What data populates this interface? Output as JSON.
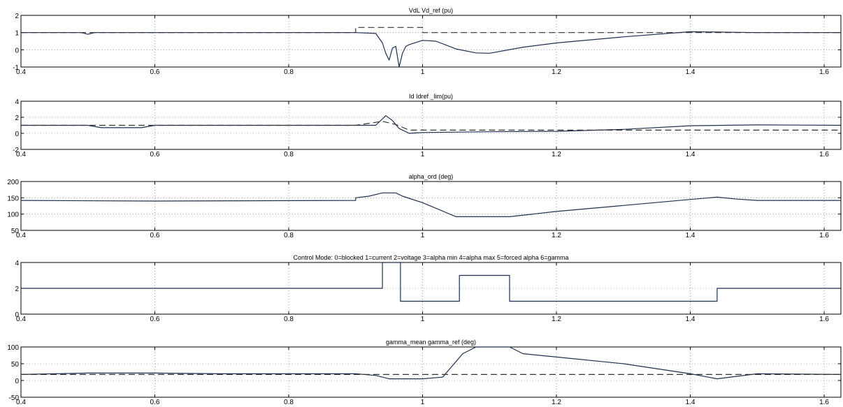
{
  "chart_data": [
    {
      "type": "line",
      "title": "VdL  Vd_ref (pu)",
      "xlim": [
        0.4,
        1.625
      ],
      "ylim": [
        -1,
        2
      ],
      "x_ticks": [
        "0.4",
        "0.6",
        "0.8",
        "1",
        "1.2",
        "1.4",
        "1.6"
      ],
      "y_ticks": [
        "-1",
        "0",
        "1",
        "2"
      ],
      "grid": true,
      "series": [
        {
          "style": "solid",
          "x": [
            0.4,
            0.49,
            0.5,
            0.51,
            0.6,
            0.62,
            0.9,
            0.93,
            0.94,
            0.945,
            0.95,
            0.955,
            0.96,
            0.965,
            0.97,
            0.975,
            0.98,
            1.0,
            1.02,
            1.05,
            1.08,
            1.1,
            1.15,
            1.2,
            1.3,
            1.4,
            1.5,
            1.625
          ],
          "y": [
            1.0,
            1.0,
            0.9,
            1.0,
            1.0,
            1.0,
            1.0,
            0.95,
            0.4,
            -0.2,
            -0.6,
            0.1,
            0.2,
            -1.0,
            -0.2,
            0.2,
            0.3,
            0.55,
            0.5,
            0.05,
            -0.18,
            -0.2,
            0.15,
            0.4,
            0.75,
            1.05,
            1.0,
            1.0
          ]
        },
        {
          "style": "dashed",
          "x": [
            0.4,
            0.9,
            0.9,
            1.0,
            1.0,
            1.625
          ],
          "y": [
            1.0,
            1.0,
            1.3,
            1.3,
            1.0,
            1.0
          ]
        }
      ]
    },
    {
      "type": "line",
      "title": "Id Idref _lim(pu)",
      "xlim": [
        0.4,
        1.625
      ],
      "ylim": [
        -2,
        4
      ],
      "x_ticks": [
        "0.4",
        "0.6",
        "0.8",
        "1",
        "1.2",
        "1.4",
        "1.6"
      ],
      "y_ticks": [
        "-2",
        "0",
        "2",
        "4"
      ],
      "grid": true,
      "series": [
        {
          "style": "solid",
          "x": [
            0.4,
            0.5,
            0.52,
            0.58,
            0.6,
            0.9,
            0.93,
            0.945,
            0.955,
            0.965,
            0.98,
            0.99,
            1.0,
            1.1,
            1.2,
            1.3,
            1.4,
            1.5,
            1.625
          ],
          "y": [
            1.0,
            1.0,
            0.7,
            0.7,
            1.0,
            1.0,
            1.0,
            2.2,
            1.6,
            0.6,
            0.0,
            0.05,
            0.1,
            0.2,
            0.25,
            0.5,
            0.95,
            1.05,
            1.0
          ]
        },
        {
          "style": "dashed",
          "x": [
            0.4,
            0.9,
            0.94,
            0.96,
            0.98,
            1.0,
            1.625
          ],
          "y": [
            1.0,
            1.0,
            1.5,
            1.1,
            0.4,
            0.4,
            0.4
          ]
        }
      ]
    },
    {
      "type": "line",
      "title": "alpha_ord (deg)",
      "xlim": [
        0.4,
        1.625
      ],
      "ylim": [
        50,
        200
      ],
      "x_ticks": [
        "0.4",
        "0.6",
        "0.8",
        "1",
        "1.2",
        "1.4",
        "1.6"
      ],
      "y_ticks": [
        "50",
        "100",
        "150",
        "200"
      ],
      "grid": true,
      "series": [
        {
          "style": "solid",
          "x": [
            0.4,
            0.6,
            0.9,
            0.9,
            0.92,
            0.94,
            0.96,
            0.97,
            1.0,
            1.05,
            1.13,
            1.2,
            1.4,
            1.44,
            1.47,
            1.5,
            1.625
          ],
          "y": [
            142,
            140,
            142,
            150,
            155,
            165,
            165,
            155,
            135,
            92,
            92,
            108,
            145,
            152,
            146,
            142,
            142
          ]
        }
      ]
    },
    {
      "type": "line",
      "title": "Control Mode:  0=blocked  1=current  2=voltage  3=alpha min  4=alpha max  5=forced alpha  6=gamma",
      "xlim": [
        0.4,
        1.625
      ],
      "ylim": [
        0,
        4
      ],
      "x_ticks": [
        "0.4",
        "0.6",
        "0.8",
        "1",
        "1.2",
        "1.4",
        "1.6"
      ],
      "y_ticks": [
        "0",
        "2",
        "4"
      ],
      "grid": true,
      "series": [
        {
          "style": "solid",
          "x": [
            0.4,
            0.94,
            0.94,
            0.955,
            0.955,
            0.967,
            0.967,
            1.055,
            1.055,
            1.13,
            1.13,
            1.44,
            1.44,
            1.625
          ],
          "y": [
            2,
            2,
            4,
            4,
            4,
            4,
            1,
            1,
            3,
            3,
            1,
            1,
            2,
            2
          ]
        }
      ]
    },
    {
      "type": "line",
      "title": "gamma_mean  gamma_ref (deg)",
      "xlim": [
        0.4,
        1.625
      ],
      "ylim": [
        -50,
        100
      ],
      "x_ticks": [
        "0.4",
        "0.6",
        "0.8",
        "1",
        "1.2",
        "1.4",
        "1.6"
      ],
      "y_ticks": [
        "-50",
        "0",
        "50",
        "100"
      ],
      "grid": true,
      "series": [
        {
          "style": "solid",
          "x": [
            0.4,
            0.5,
            0.6,
            0.7,
            0.9,
            0.93,
            0.95,
            1.0,
            1.03,
            1.06,
            1.08,
            1.13,
            1.15,
            1.2,
            1.3,
            1.4,
            1.44,
            1.5,
            1.625
          ],
          "y": [
            18,
            22,
            22,
            20,
            20,
            15,
            5,
            5,
            10,
            80,
            100,
            100,
            80,
            70,
            50,
            20,
            5,
            20,
            18
          ]
        },
        {
          "style": "dashed",
          "x": [
            0.4,
            1.625
          ],
          "y": [
            18,
            18
          ]
        }
      ]
    }
  ]
}
